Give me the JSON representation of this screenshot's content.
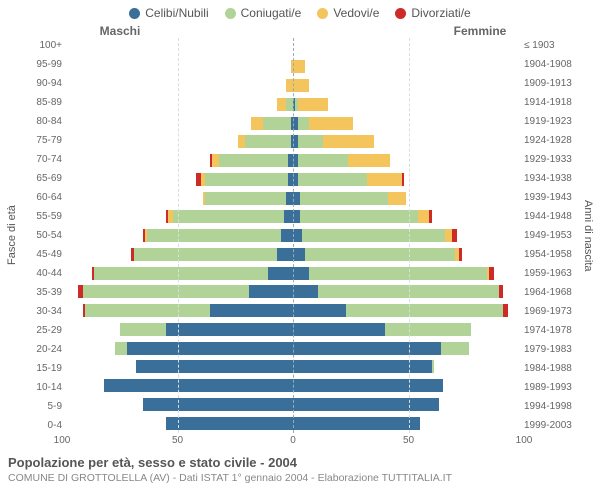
{
  "legend": [
    {
      "label": "Celibi/Nubili",
      "color": "#3a6f9a"
    },
    {
      "label": "Coniugati/e",
      "color": "#b2d397"
    },
    {
      "label": "Vedovi/e",
      "color": "#f4c55c"
    },
    {
      "label": "Divorziati/e",
      "color": "#cc2b28"
    }
  ],
  "gender_labels": {
    "male": "Maschi",
    "female": "Femmine"
  },
  "axis_titles": {
    "left": "Fasce di età",
    "right": "Anni di nascita"
  },
  "x_axis": {
    "max": 100,
    "ticks": [
      100,
      50,
      0,
      50,
      100
    ]
  },
  "colors": {
    "grid": "#d9dde0",
    "center": "#9aaab5",
    "bg": "#ffffff"
  },
  "rows": [
    {
      "age": "100+",
      "birth": "≤ 1903",
      "m": [
        0,
        0,
        0,
        0
      ],
      "f": [
        0,
        0,
        0,
        0
      ]
    },
    {
      "age": "95-99",
      "birth": "1904-1908",
      "m": [
        0,
        0,
        1,
        0
      ],
      "f": [
        0,
        0,
        5,
        0
      ]
    },
    {
      "age": "90-94",
      "birth": "1909-1913",
      "m": [
        0,
        0,
        3,
        0
      ],
      "f": [
        0,
        0,
        7,
        0
      ]
    },
    {
      "age": "85-89",
      "birth": "1914-1918",
      "m": [
        0,
        3,
        4,
        0
      ],
      "f": [
        1,
        1,
        13,
        0
      ]
    },
    {
      "age": "80-84",
      "birth": "1919-1923",
      "m": [
        1,
        12,
        5,
        0
      ],
      "f": [
        2,
        5,
        19,
        0
      ]
    },
    {
      "age": "75-79",
      "birth": "1924-1928",
      "m": [
        1,
        20,
        3,
        0
      ],
      "f": [
        2,
        11,
        22,
        0
      ]
    },
    {
      "age": "70-74",
      "birth": "1929-1933",
      "m": [
        2,
        30,
        3,
        1
      ],
      "f": [
        2,
        22,
        18,
        0
      ]
    },
    {
      "age": "65-69",
      "birth": "1934-1938",
      "m": [
        2,
        36,
        2,
        2
      ],
      "f": [
        2,
        30,
        15,
        1
      ]
    },
    {
      "age": "60-64",
      "birth": "1939-1943",
      "m": [
        3,
        35,
        1,
        0
      ],
      "f": [
        3,
        38,
        8,
        0
      ]
    },
    {
      "age": "55-59",
      "birth": "1944-1948",
      "m": [
        4,
        48,
        2,
        1
      ],
      "f": [
        3,
        51,
        5,
        1
      ]
    },
    {
      "age": "50-54",
      "birth": "1949-1953",
      "m": [
        5,
        58,
        1,
        1
      ],
      "f": [
        4,
        62,
        3,
        2
      ]
    },
    {
      "age": "45-49",
      "birth": "1954-1958",
      "m": [
        7,
        62,
        0,
        1
      ],
      "f": [
        5,
        65,
        2,
        1
      ]
    },
    {
      "age": "40-44",
      "birth": "1959-1963",
      "m": [
        11,
        75,
        0,
        1
      ],
      "f": [
        7,
        77,
        1,
        2
      ]
    },
    {
      "age": "35-39",
      "birth": "1964-1968",
      "m": [
        19,
        72,
        0,
        2
      ],
      "f": [
        11,
        78,
        0,
        2
      ]
    },
    {
      "age": "30-34",
      "birth": "1969-1973",
      "m": [
        36,
        54,
        0,
        1
      ],
      "f": [
        23,
        68,
        0,
        2
      ]
    },
    {
      "age": "25-29",
      "birth": "1974-1978",
      "m": [
        55,
        20,
        0,
        0
      ],
      "f": [
        40,
        37,
        0,
        0
      ]
    },
    {
      "age": "20-24",
      "birth": "1979-1983",
      "m": [
        72,
        5,
        0,
        0
      ],
      "f": [
        64,
        12,
        0,
        0
      ]
    },
    {
      "age": "15-19",
      "birth": "1984-1988",
      "m": [
        68,
        0,
        0,
        0
      ],
      "f": [
        60,
        1,
        0,
        0
      ]
    },
    {
      "age": "10-14",
      "birth": "1989-1993",
      "m": [
        82,
        0,
        0,
        0
      ],
      "f": [
        65,
        0,
        0,
        0
      ]
    },
    {
      "age": "5-9",
      "birth": "1994-1998",
      "m": [
        65,
        0,
        0,
        0
      ],
      "f": [
        63,
        0,
        0,
        0
      ]
    },
    {
      "age": "0-4",
      "birth": "1999-2003",
      "m": [
        55,
        0,
        0,
        0
      ],
      "f": [
        55,
        0,
        0,
        0
      ]
    }
  ],
  "footer": {
    "title": "Popolazione per età, sesso e stato civile - 2004",
    "subtitle": "COMUNE DI GROTTOLELLA (AV) - Dati ISTAT 1° gennaio 2004 - Elaborazione TUTTITALIA.IT"
  }
}
